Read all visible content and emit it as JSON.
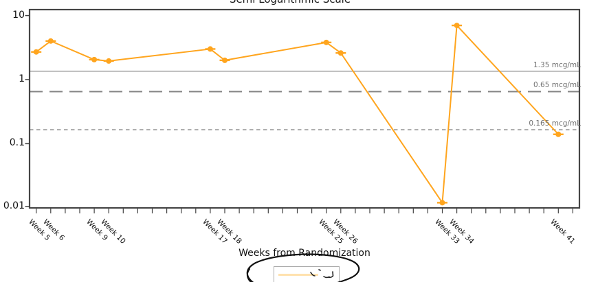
{
  "title": "Semi Logarithmic Scale",
  "chart_data": {
    "type": "line",
    "title": "Semi Logarithmic Scale",
    "xlabel": "Weeks from Randomization",
    "ylabel": "",
    "x": [
      5,
      6,
      9,
      10,
      17,
      18,
      25,
      26,
      33,
      34,
      41
    ],
    "x_tick_labels": [
      "Week 5",
      "Week 6",
      "Week 9",
      "Week 10",
      "Week 17",
      "Week 18",
      "Week 25",
      "Week 26",
      "Week 33",
      "Week 34",
      "Week 41"
    ],
    "values": [
      2.7,
      4.0,
      2.05,
      1.95,
      3.0,
      2.0,
      3.8,
      2.6,
      0.012,
      7.0,
      0.14
    ],
    "y_scale": "log10",
    "y_ticks": [
      10,
      1,
      0.1,
      0.01
    ],
    "y_tick_labels": [
      "10",
      "1",
      "0.1",
      "0.01"
    ],
    "ylim": [
      0.009,
      13
    ],
    "x_axis_weeks_range": [
      5,
      42
    ],
    "grid": "off",
    "series_color": "#FFA51E",
    "reference_lines": [
      {
        "value": 1.35,
        "label": "1.35 mcg/mL",
        "style": "solid",
        "color": "#999999"
      },
      {
        "value": 0.65,
        "label": "0.65 mcg/mL",
        "style": "long-dash",
        "color": "#858585"
      },
      {
        "value": 0.165,
        "label": "0.165 mcg/mL",
        "style": "dash",
        "color": "#858585"
      }
    ],
    "legend": {
      "position": "bottom",
      "swatch_color": "#FFE2AE",
      "label": ""
    }
  },
  "annotation": {
    "type": "hand-drawn-ellipse",
    "around": "legend",
    "color": "#111111"
  }
}
